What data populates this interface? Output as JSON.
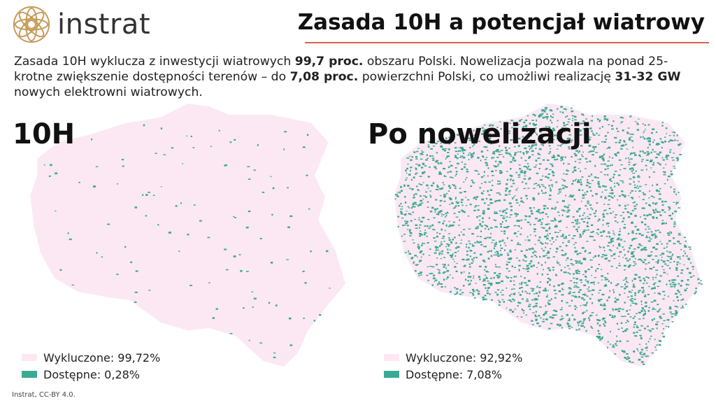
{
  "brand": {
    "name": "instrat",
    "logo_icon": "instrat-mandala-logo",
    "logo_color": "#c49a5a"
  },
  "header": {
    "title": "Zasada 10H a potencjał wiatrowy",
    "rule_color": "#d9604a"
  },
  "intro": {
    "p1": "Zasada 10H wyklucza z inwestycji wiatrowych ",
    "b1": "99,7 proc.",
    "p2": " obszaru Polski. Nowelizacja pozwala na ponad 25-krotne zwiększenie dostępności terenów – do ",
    "b2": "7,08 proc.",
    "p3": " powierzchni Polski, co umożliwi realizację ",
    "b3": "31-32 GW",
    "p4": " nowych elektrowni wiatrowych."
  },
  "colors": {
    "excluded": "#fce8f3",
    "available": "#3aaa95"
  },
  "maps": [
    {
      "title": "10H",
      "available_share": 0.0028,
      "legend": {
        "excluded": "Wykluczone: 99,72%",
        "available": "Dostępne: 0,28%"
      }
    },
    {
      "title": "Po nowelizacji",
      "available_share": 0.0708,
      "legend": {
        "excluded": "Wykluczone: 92,92%",
        "available": "Dostępne: 7,08%"
      }
    }
  ],
  "footer": {
    "source": "Instrat, CC-BY 4.0."
  }
}
